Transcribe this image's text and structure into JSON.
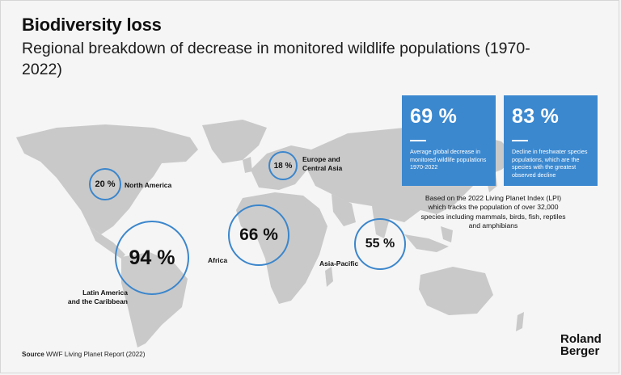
{
  "header": {
    "title": "Biodiversity loss",
    "subtitle": "Regional breakdown of decrease in monitored wildlife populations (1970-2022)"
  },
  "regions": [
    {
      "id": "north-america",
      "value": "20 %",
      "label_lines": [
        "North America"
      ]
    },
    {
      "id": "europe-central-asia",
      "value": "18 %",
      "label_lines": [
        "Europe and",
        "Central Asia"
      ]
    },
    {
      "id": "latin-america",
      "value": "94 %",
      "label_lines": [
        "Latin America",
        "and the Caribbean"
      ]
    },
    {
      "id": "africa",
      "value": "66 %",
      "label_lines": [
        "Africa"
      ]
    },
    {
      "id": "asia-pacific",
      "value": "55 %",
      "label_lines": [
        "Asia-Pacific"
      ]
    }
  ],
  "stats": [
    {
      "value": "69 %",
      "description": "Average global decrease in monitored wildlife populations 1970-2022"
    },
    {
      "value": "83 %",
      "description": "Decline in freshwater species populations, which are the species with the greatest observed decline"
    }
  ],
  "lpi_note": "Based on the 2022 Living Planet Index (LPI) which tracks the population of over 32,000 species including mammals, birds, fish, reptiles and amphibians",
  "source": {
    "label": "Source",
    "text": "WWF Living Planet Report (2022)"
  },
  "logo": {
    "line1": "Roland",
    "line2": "Berger"
  },
  "colors": {
    "accent": "#3b88cf",
    "map": "#c8c8c8",
    "background": "#f5f5f5"
  }
}
